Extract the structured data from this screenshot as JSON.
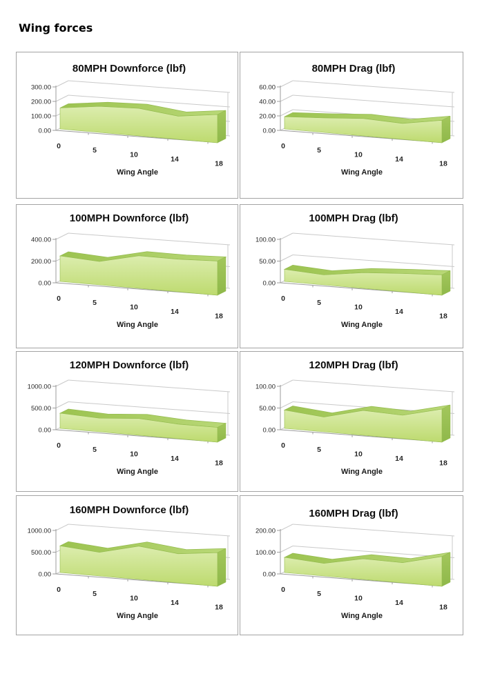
{
  "page": {
    "title": "Wing forces"
  },
  "colors": {
    "area_fill_top": "#dcedae",
    "area_fill_bottom": "#bdda6e",
    "area_ribbon_left": "#9cc350",
    "area_ribbon_right": "#b9d877",
    "area_side_top": "#a3c75c",
    "area_side_bottom": "#8fb84a",
    "area_edge": "#94bb4f",
    "gridline": "#c9c9c9",
    "axis_line": "#9b9b9b",
    "label_text": "#262626"
  },
  "chart_data": [
    {
      "type": "area",
      "title": "80MPH Downforce (lbf)",
      "xlabel": "Wing Angle",
      "categories": [
        "0",
        "5",
        "10",
        "14",
        "18"
      ],
      "values": [
        145,
        180,
        190,
        160,
        195
      ],
      "y_ticks": [
        "0.00",
        "100.00",
        "200.00",
        "300.00"
      ],
      "ylim": [
        0,
        300
      ],
      "grid": true,
      "legend": false,
      "style": "3d-area-green"
    },
    {
      "type": "area",
      "title": "80MPH Drag (lbf)",
      "xlabel": "Wing Angle",
      "categories": [
        "0",
        "5",
        "10",
        "14",
        "18"
      ],
      "values": [
        17,
        20,
        24,
        22,
        31
      ],
      "y_ticks": [
        "0.00",
        "20.00",
        "40.00",
        "60.00"
      ],
      "ylim": [
        0,
        60
      ],
      "grid": true,
      "legend": false,
      "style": "3d-area-green"
    },
    {
      "type": "area",
      "title": "100MPH Downforce (lbf)",
      "xlabel": "Wing Angle",
      "categories": [
        "0",
        "5",
        "10",
        "14",
        "18"
      ],
      "values": [
        235,
        215,
        300,
        300,
        315
      ],
      "y_ticks": [
        "0.00",
        "200.00",
        "400.00"
      ],
      "ylim": [
        0,
        400
      ],
      "grid": true,
      "legend": false,
      "style": "3d-area-green"
    },
    {
      "type": "area",
      "title": "100MPH Drag (lbf)",
      "xlabel": "Wing Angle",
      "categories": [
        "0",
        "5",
        "10",
        "14",
        "18"
      ],
      "values": [
        28,
        23,
        36,
        42,
        47
      ],
      "y_ticks": [
        "0.00",
        "50.00",
        "100.00"
      ],
      "ylim": [
        0,
        100
      ],
      "grid": true,
      "legend": false,
      "style": "3d-area-green"
    },
    {
      "type": "area",
      "title": "120MPH Downforce (lbf)",
      "xlabel": "Wing Angle",
      "categories": [
        "0",
        "5",
        "10",
        "14",
        "18"
      ],
      "values": [
        350,
        315,
        385,
        335,
        340
      ],
      "y_ticks": [
        "0.00",
        "500.00",
        "1000.00"
      ],
      "ylim": [
        0,
        1000
      ],
      "grid": true,
      "legend": false,
      "style": "3d-area-green"
    },
    {
      "type": "area",
      "title": "120MPH Drag (lbf)",
      "xlabel": "Wing Angle",
      "categories": [
        "0",
        "5",
        "10",
        "14",
        "18"
      ],
      "values": [
        42,
        34,
        57,
        54,
        76
      ],
      "y_ticks": [
        "0.00",
        "50.00",
        "100.00"
      ],
      "ylim": [
        0,
        100
      ],
      "grid": true,
      "legend": false,
      "style": "3d-area-green"
    },
    {
      "type": "area",
      "title": "160MPH Downforce (lbf)",
      "xlabel": "Wing Angle",
      "categories": [
        "0",
        "5",
        "10",
        "14",
        "18"
      ],
      "values": [
        615,
        545,
        765,
        670,
        775
      ],
      "y_ticks": [
        "0.00",
        "500.00",
        "1000.00"
      ],
      "ylim": [
        0,
        1000
      ],
      "grid": true,
      "legend": false,
      "style": "3d-area-green"
    },
    {
      "type": "area",
      "title": "160MPH Drag (lbf)",
      "xlabel": "Wing Angle",
      "categories": [
        "0",
        "5",
        "10",
        "14",
        "18"
      ],
      "values": [
        70,
        58,
        95,
        93,
        137
      ],
      "y_ticks": [
        "0.00",
        "100.00",
        "200.00"
      ],
      "ylim": [
        0,
        200
      ],
      "grid": true,
      "legend": false,
      "style": "3d-area-green"
    }
  ]
}
